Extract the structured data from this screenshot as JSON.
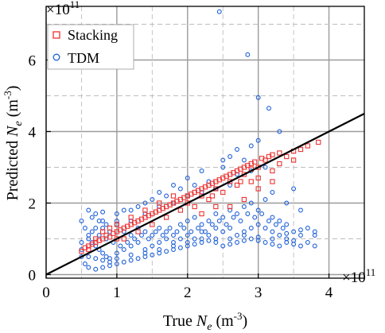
{
  "chart_data": {
    "type": "scatter",
    "title": "",
    "xlabel_main": "True ",
    "xlabel_var": "N",
    "xlabel_sub": "e",
    "xlabel_unit": " (m",
    "xlabel_exp": "-3",
    "xlabel_close": ")",
    "ylabel_main": "Predicted ",
    "ylabel_var": "N",
    "ylabel_sub": "e",
    "ylabel_unit": " (m",
    "ylabel_exp": "-3",
    "ylabel_close": ")",
    "x_scale_base": "×10",
    "x_scale_exp": "11",
    "y_scale_base": "×10",
    "y_scale_exp": "11",
    "xlim": [
      0,
      4.5
    ],
    "ylim": [
      -0.1,
      7.5
    ],
    "xticks": [
      0,
      1,
      2,
      3,
      4
    ],
    "xtick_labels": [
      "0",
      "1",
      "2",
      "3",
      "4"
    ],
    "yticks": [
      0,
      2,
      4,
      6
    ],
    "ytick_labels": [
      "0",
      "2",
      "4",
      "6"
    ],
    "minor_xticks": [
      0.5,
      1.5,
      2.5,
      3.5
    ],
    "minor_yticks": [
      1,
      3,
      5,
      7
    ],
    "grid": true,
    "legend_position": "top-left",
    "series": [
      {
        "name": "Stacking",
        "marker": "square",
        "color": "#ee3333",
        "points": [
          [
            0.5,
            0.65
          ],
          [
            0.55,
            0.75
          ],
          [
            0.6,
            0.7
          ],
          [
            0.65,
            0.85
          ],
          [
            0.7,
            0.9
          ],
          [
            0.75,
            0.95
          ],
          [
            0.8,
            1.0
          ],
          [
            0.85,
            1.1
          ],
          [
            0.9,
            1.05
          ],
          [
            0.95,
            1.15
          ],
          [
            1.0,
            1.2
          ],
          [
            1.05,
            1.25
          ],
          [
            1.1,
            1.3
          ],
          [
            1.15,
            1.35
          ],
          [
            1.2,
            1.4
          ],
          [
            1.25,
            1.45
          ],
          [
            1.3,
            1.5
          ],
          [
            1.35,
            1.55
          ],
          [
            1.4,
            1.6
          ],
          [
            1.45,
            1.65
          ],
          [
            1.5,
            1.7
          ],
          [
            1.55,
            1.75
          ],
          [
            1.6,
            1.8
          ],
          [
            1.65,
            1.85
          ],
          [
            1.7,
            1.9
          ],
          [
            1.75,
            1.95
          ],
          [
            1.8,
            2.0
          ],
          [
            1.85,
            2.05
          ],
          [
            1.9,
            2.1
          ],
          [
            1.95,
            2.15
          ],
          [
            2.0,
            2.2
          ],
          [
            2.05,
            2.25
          ],
          [
            2.1,
            2.3
          ],
          [
            2.15,
            2.35
          ],
          [
            2.2,
            2.4
          ],
          [
            2.25,
            2.45
          ],
          [
            2.3,
            2.5
          ],
          [
            2.35,
            2.55
          ],
          [
            2.4,
            2.6
          ],
          [
            2.45,
            2.65
          ],
          [
            2.5,
            2.7
          ],
          [
            2.55,
            2.75
          ],
          [
            2.6,
            2.8
          ],
          [
            2.65,
            2.85
          ],
          [
            2.7,
            2.9
          ],
          [
            2.75,
            2.95
          ],
          [
            2.8,
            3.0
          ],
          [
            2.85,
            3.05
          ],
          [
            2.9,
            3.1
          ],
          [
            2.95,
            3.15
          ],
          [
            3.0,
            3.0
          ],
          [
            3.05,
            3.25
          ],
          [
            3.1,
            3.2
          ],
          [
            3.15,
            3.3
          ],
          [
            3.2,
            3.35
          ],
          [
            3.3,
            3.4
          ],
          [
            3.4,
            3.3
          ],
          [
            3.5,
            3.45
          ],
          [
            3.6,
            3.5
          ],
          [
            3.7,
            3.6
          ],
          [
            3.85,
            3.7
          ],
          [
            1.0,
            1.4
          ],
          [
            1.2,
            1.6
          ],
          [
            1.4,
            1.8
          ],
          [
            1.6,
            2.0
          ],
          [
            1.8,
            2.2
          ],
          [
            2.0,
            2.0
          ],
          [
            2.2,
            2.2
          ],
          [
            2.4,
            2.4
          ],
          [
            2.6,
            2.6
          ],
          [
            2.8,
            2.8
          ],
          [
            1.1,
            1.0
          ],
          [
            1.3,
            1.2
          ],
          [
            1.5,
            1.4
          ],
          [
            1.7,
            1.6
          ],
          [
            1.9,
            1.8
          ],
          [
            2.1,
            1.9
          ],
          [
            2.3,
            2.1
          ],
          [
            2.5,
            2.3
          ],
          [
            2.7,
            2.5
          ],
          [
            2.9,
            2.6
          ],
          [
            3.0,
            2.7
          ],
          [
            3.2,
            2.9
          ],
          [
            2.6,
            1.9
          ],
          [
            2.8,
            2.1
          ],
          [
            3.0,
            2.4
          ],
          [
            3.2,
            2.6
          ],
          [
            2.4,
            1.9
          ],
          [
            2.2,
            1.7
          ],
          [
            0.6,
            0.8
          ],
          [
            0.7,
            1.0
          ],
          [
            0.8,
            1.2
          ],
          [
            0.9,
            1.3
          ],
          [
            1.0,
            1.0
          ],
          [
            3.3,
            3.1
          ],
          [
            3.5,
            3.2
          ],
          [
            2.9,
            2.95
          ],
          [
            2.75,
            2.6
          ],
          [
            2.35,
            2.2
          ]
        ]
      },
      {
        "name": "TDM",
        "marker": "circle",
        "color": "#1e60d8",
        "points": [
          [
            2.45,
            7.35
          ],
          [
            2.85,
            6.15
          ],
          [
            3.0,
            4.95
          ],
          [
            3.15,
            4.65
          ],
          [
            3.3,
            4.0
          ],
          [
            3.0,
            3.75
          ],
          [
            2.9,
            3.6
          ],
          [
            2.7,
            3.5
          ],
          [
            2.5,
            3.2
          ],
          [
            2.2,
            2.9
          ],
          [
            2.0,
            2.7
          ],
          [
            1.8,
            2.5
          ],
          [
            1.6,
            2.3
          ],
          [
            1.4,
            2.0
          ],
          [
            1.2,
            1.8
          ],
          [
            1.0,
            1.7
          ],
          [
            0.8,
            1.5
          ],
          [
            0.7,
            1.3
          ],
          [
            0.6,
            1.1
          ],
          [
            0.5,
            0.9
          ],
          [
            0.5,
            0.5
          ],
          [
            0.55,
            0.3
          ],
          [
            0.6,
            0.2
          ],
          [
            0.7,
            0.15
          ],
          [
            0.8,
            0.2
          ],
          [
            0.9,
            0.25
          ],
          [
            1.0,
            0.3
          ],
          [
            1.1,
            0.35
          ],
          [
            1.2,
            0.4
          ],
          [
            1.3,
            0.45
          ],
          [
            1.4,
            0.5
          ],
          [
            1.5,
            0.55
          ],
          [
            1.6,
            0.6
          ],
          [
            1.7,
            0.65
          ],
          [
            1.8,
            0.7
          ],
          [
            1.9,
            0.75
          ],
          [
            2.0,
            0.8
          ],
          [
            2.1,
            0.85
          ],
          [
            2.2,
            0.9
          ],
          [
            2.3,
            0.95
          ],
          [
            2.4,
            1.0
          ],
          [
            2.5,
            0.8
          ],
          [
            2.6,
            0.85
          ],
          [
            2.7,
            0.9
          ],
          [
            2.8,
            0.95
          ],
          [
            2.9,
            1.0
          ],
          [
            3.0,
            0.95
          ],
          [
            3.1,
            0.9
          ],
          [
            3.2,
            0.85
          ],
          [
            3.3,
            0.8
          ],
          [
            3.4,
            0.9
          ],
          [
            3.5,
            0.85
          ],
          [
            3.6,
            0.8
          ],
          [
            3.7,
            0.9
          ],
          [
            3.8,
            1.1
          ],
          [
            0.6,
            1.8
          ],
          [
            0.65,
            1.6
          ],
          [
            0.7,
            1.7
          ],
          [
            0.75,
            1.5
          ],
          [
            0.8,
            1.75
          ],
          [
            0.85,
            1.4
          ],
          [
            0.9,
            1.2
          ],
          [
            1.0,
            1.4
          ],
          [
            1.1,
            1.2
          ],
          [
            1.2,
            1.1
          ],
          [
            1.3,
            1.3
          ],
          [
            1.4,
            1.2
          ],
          [
            1.5,
            1.1
          ],
          [
            1.6,
            1.3
          ],
          [
            1.7,
            1.2
          ],
          [
            1.8,
            1.1
          ],
          [
            1.9,
            1.4
          ],
          [
            2.0,
            1.5
          ],
          [
            2.1,
            1.6
          ],
          [
            2.2,
            1.4
          ],
          [
            2.3,
            1.5
          ],
          [
            2.4,
            1.7
          ],
          [
            2.5,
            1.6
          ],
          [
            2.6,
            1.8
          ],
          [
            2.7,
            1.7
          ],
          [
            2.8,
            1.9
          ],
          [
            2.9,
            2.0
          ],
          [
            3.0,
            1.8
          ],
          [
            3.1,
            2.1
          ],
          [
            3.2,
            1.6
          ],
          [
            3.3,
            1.5
          ],
          [
            3.4,
            1.4
          ],
          [
            3.5,
            1.2
          ],
          [
            3.6,
            1.1
          ],
          [
            3.7,
            1.3
          ],
          [
            3.8,
            1.2
          ],
          [
            0.5,
            1.5
          ],
          [
            0.55,
            1.3
          ],
          [
            0.6,
            1.0
          ],
          [
            0.65,
            0.9
          ],
          [
            0.7,
            0.8
          ],
          [
            0.75,
            0.7
          ],
          [
            0.8,
            0.6
          ],
          [
            0.85,
            0.5
          ],
          [
            0.9,
            0.45
          ],
          [
            1.0,
            0.6
          ],
          [
            1.1,
            0.7
          ],
          [
            1.2,
            0.8
          ],
          [
            1.3,
            0.9
          ],
          [
            1.4,
            0.7
          ],
          [
            1.5,
            0.8
          ],
          [
            1.6,
            0.9
          ],
          [
            1.7,
            1.0
          ],
          [
            1.8,
            0.9
          ],
          [
            1.9,
            1.0
          ],
          [
            2.0,
            1.1
          ],
          [
            2.1,
            1.0
          ],
          [
            2.2,
            1.2
          ],
          [
            2.3,
            1.1
          ],
          [
            2.4,
            1.3
          ],
          [
            2.5,
            1.2
          ],
          [
            2.6,
            1.3
          ],
          [
            2.7,
            1.1
          ],
          [
            2.8,
            1.2
          ],
          [
            2.9,
            1.3
          ],
          [
            3.0,
            1.4
          ],
          [
            3.1,
            1.3
          ],
          [
            3.2,
            1.2
          ],
          [
            3.3,
            1.1
          ],
          [
            3.4,
            1.0
          ],
          [
            3.5,
            0.95
          ],
          [
            2.0,
            2.2
          ],
          [
            2.2,
            2.3
          ],
          [
            2.4,
            2.4
          ],
          [
            2.6,
            2.5
          ],
          [
            1.8,
            2.0
          ],
          [
            1.6,
            1.9
          ],
          [
            1.4,
            1.7
          ],
          [
            1.2,
            1.5
          ],
          [
            1.0,
            1.5
          ],
          [
            0.8,
            1.3
          ],
          [
            2.5,
            3.0
          ],
          [
            2.7,
            2.8
          ],
          [
            2.9,
            2.9
          ],
          [
            3.1,
            3.0
          ],
          [
            2.3,
            2.6
          ],
          [
            2.1,
            2.5
          ],
          [
            1.9,
            2.4
          ],
          [
            1.7,
            2.2
          ],
          [
            1.5,
            2.1
          ],
          [
            1.3,
            1.9
          ],
          [
            1.1,
            1.8
          ],
          [
            3.2,
            2.3
          ],
          [
            3.4,
            2.0
          ],
          [
            3.6,
            1.8
          ],
          [
            3.5,
            2.4
          ],
          [
            2.8,
            3.2
          ],
          [
            2.6,
            3.3
          ],
          [
            0.5,
            0.7
          ],
          [
            0.6,
            0.5
          ],
          [
            0.7,
            0.45
          ],
          [
            0.8,
            0.4
          ],
          [
            0.9,
            0.35
          ],
          [
            1.0,
            0.45
          ],
          [
            1.2,
            0.55
          ],
          [
            1.4,
            0.6
          ],
          [
            1.6,
            0.7
          ],
          [
            1.8,
            0.8
          ],
          [
            2.0,
            0.9
          ],
          [
            2.2,
            1.0
          ],
          [
            2.4,
            0.9
          ],
          [
            2.6,
            1.0
          ],
          [
            2.8,
            1.1
          ],
          [
            3.0,
            1.05
          ],
          [
            3.2,
            1.0
          ],
          [
            3.4,
            1.15
          ],
          [
            3.6,
            1.25
          ],
          [
            3.8,
            0.8
          ],
          [
            0.65,
            1.2
          ],
          [
            0.75,
            1.1
          ],
          [
            0.85,
            1.0
          ],
          [
            0.95,
            0.9
          ],
          [
            1.05,
            0.8
          ],
          [
            1.15,
            0.9
          ],
          [
            1.25,
            1.0
          ],
          [
            1.35,
            1.1
          ],
          [
            1.45,
            1.0
          ],
          [
            1.55,
            1.2
          ],
          [
            1.65,
            1.1
          ],
          [
            1.75,
            1.3
          ],
          [
            1.85,
            1.2
          ],
          [
            1.95,
            1.3
          ],
          [
            2.05,
            1.2
          ],
          [
            2.15,
            1.3
          ],
          [
            2.25,
            1.2
          ],
          [
            2.35,
            1.4
          ],
          [
            2.45,
            1.5
          ],
          [
            2.55,
            1.4
          ],
          [
            2.65,
            1.6
          ],
          [
            2.75,
            1.5
          ],
          [
            2.85,
            1.7
          ],
          [
            2.95,
            1.6
          ],
          [
            3.05,
            1.7
          ],
          [
            3.15,
            1.5
          ],
          [
            3.25,
            1.4
          ],
          [
            3.35,
            1.3
          ]
        ]
      }
    ],
    "reference_line": {
      "from": [
        0,
        0
      ],
      "to": [
        4.5,
        4.5
      ]
    }
  }
}
